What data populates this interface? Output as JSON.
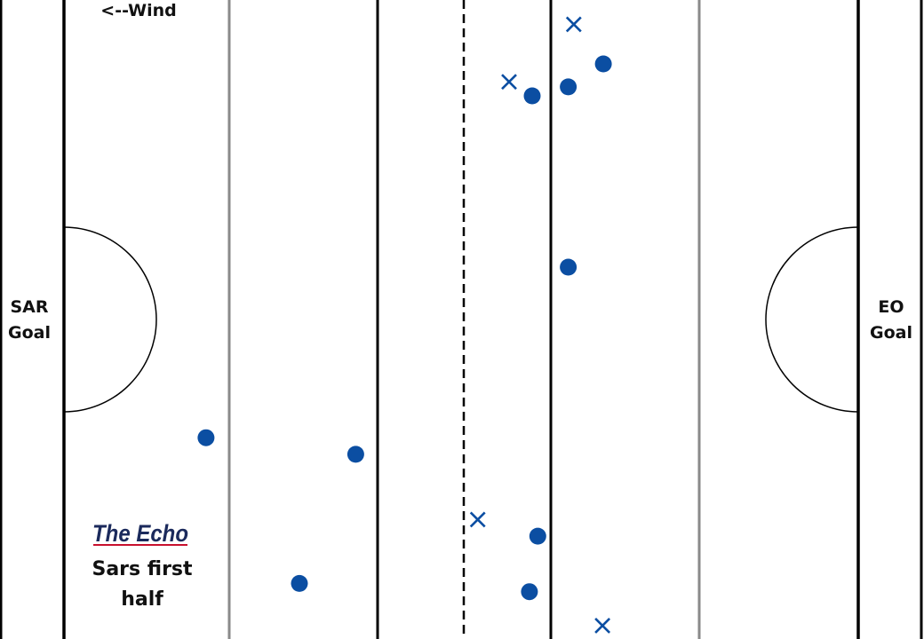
{
  "labels": {
    "wind": "<--Wind",
    "left_goal": [
      "SAR",
      "Goal"
    ],
    "right_goal": [
      "EO",
      "Goal"
    ],
    "brand": "The Echo",
    "caption": [
      "Sars first",
      "half"
    ]
  },
  "colors": {
    "marker": "#0b4ea2",
    "line_dark": "#000000",
    "line_grey": "#8a8a8a",
    "brand": "#1b2a5c",
    "brand_underline": "#c8102e"
  },
  "chart_data": {
    "type": "scatter",
    "xlabel": "",
    "ylabel": "",
    "series": [
      {
        "marker": "dot",
        "points": [
          [
            0.653,
            0.1
          ],
          [
            0.576,
            0.15
          ],
          [
            0.615,
            0.136
          ],
          [
            0.615,
            0.418
          ],
          [
            0.223,
            0.685
          ],
          [
            0.385,
            0.711
          ],
          [
            0.582,
            0.839
          ],
          [
            0.324,
            0.913
          ],
          [
            0.573,
            0.926
          ]
        ]
      },
      {
        "marker": "cross",
        "points": [
          [
            0.621,
            0.038
          ],
          [
            0.551,
            0.128
          ],
          [
            0.517,
            0.813
          ],
          [
            0.652,
            0.979
          ]
        ]
      }
    ]
  }
}
